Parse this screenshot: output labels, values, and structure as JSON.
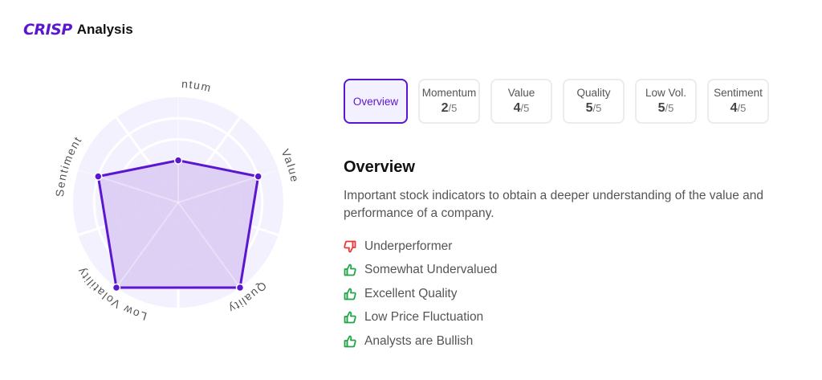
{
  "brand": {
    "logo": "CRISP",
    "title": "Analysis"
  },
  "chart_data": {
    "type": "radar",
    "categories": [
      "Momentum",
      "Value",
      "Quality",
      "Low Volatility",
      "Sentiment"
    ],
    "values": [
      2,
      4,
      5,
      5,
      4
    ],
    "rmax": 5,
    "colors": {
      "line": "#5b16d0",
      "fill": "#d9c9f3",
      "background": "#f3f1fd"
    }
  },
  "tabs": [
    {
      "label": "Overview",
      "active": true
    },
    {
      "label": "Momentum",
      "score": "2",
      "max": "/5"
    },
    {
      "label": "Value",
      "score": "4",
      "max": "/5"
    },
    {
      "label": "Quality",
      "score": "5",
      "max": "/5"
    },
    {
      "label": "Low Vol.",
      "score": "5",
      "max": "/5"
    },
    {
      "label": "Sentiment",
      "score": "4",
      "max": "/5"
    }
  ],
  "overview": {
    "heading": "Overview",
    "description": "Important stock indicators to obtain a deeper understanding of the value and performance of a company.",
    "items": [
      {
        "text": "Underperformer",
        "icon": "thumbs-down",
        "color": "#e53935"
      },
      {
        "text": "Somewhat Undervalued",
        "icon": "thumbs-up",
        "color": "#22a447"
      },
      {
        "text": "Excellent Quality",
        "icon": "thumbs-up",
        "color": "#22a447"
      },
      {
        "text": "Low Price Fluctuation",
        "icon": "thumbs-up",
        "color": "#22a447"
      },
      {
        "text": "Analysts are Bullish",
        "icon": "thumbs-up",
        "color": "#22a447"
      }
    ]
  }
}
